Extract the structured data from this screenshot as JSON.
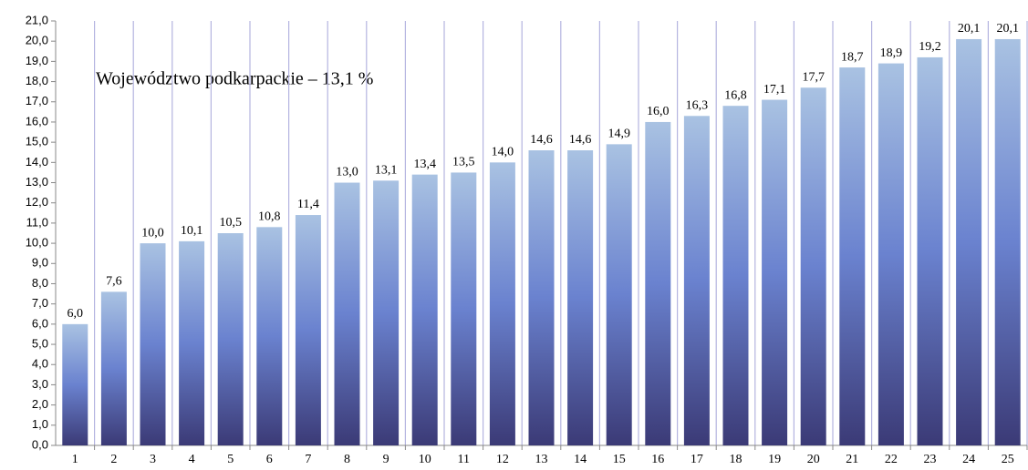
{
  "chart_data": {
    "type": "bar",
    "annotation": "Województwo podkarpackie – 13,1 %",
    "categories": [
      "1",
      "2",
      "3",
      "4",
      "5",
      "6",
      "7",
      "8",
      "9",
      "10",
      "11",
      "12",
      "13",
      "14",
      "15",
      "16",
      "17",
      "18",
      "19",
      "20",
      "21",
      "22",
      "23",
      "24",
      "25"
    ],
    "values": [
      6.0,
      7.6,
      10.0,
      10.1,
      10.5,
      10.8,
      11.4,
      13.0,
      13.1,
      13.4,
      13.5,
      14.0,
      14.6,
      14.6,
      14.9,
      16.0,
      16.3,
      16.8,
      17.1,
      17.7,
      18.7,
      18.9,
      19.2,
      20.1,
      20.1
    ],
    "value_labels": [
      "6,0",
      "7,6",
      "10,0",
      "10,1",
      "10,5",
      "10,8",
      "11,4",
      "13,0",
      "13,1",
      "13,4",
      "13,5",
      "14,0",
      "14,6",
      "14,6",
      "14,9",
      "16,0",
      "16,3",
      "16,8",
      "17,1",
      "17,7",
      "18,7",
      "18,9",
      "19,2",
      "20,1",
      "20,1"
    ],
    "ylim": [
      0,
      21
    ],
    "yticks": [
      {
        "value": 0,
        "label": "0,0"
      },
      {
        "value": 1,
        "label": "1,0"
      },
      {
        "value": 2,
        "label": "2,0"
      },
      {
        "value": 3,
        "label": "3,0"
      },
      {
        "value": 4,
        "label": "4,0"
      },
      {
        "value": 5,
        "label": "5,0"
      },
      {
        "value": 6,
        "label": "6,0"
      },
      {
        "value": 7,
        "label": "7,0"
      },
      {
        "value": 8,
        "label": "8,0"
      },
      {
        "value": 9,
        "label": "9,0"
      },
      {
        "value": 10,
        "label": "10,0"
      },
      {
        "value": 11,
        "label": "11,0"
      },
      {
        "value": 12,
        "label": "12,0"
      },
      {
        "value": 13,
        "label": "13,0"
      },
      {
        "value": 14,
        "label": "14,0"
      },
      {
        "value": 15,
        "label": "15,0"
      },
      {
        "value": 16,
        "label": "16,0"
      },
      {
        "value": 17,
        "label": "17,0"
      },
      {
        "value": 18,
        "label": "18,0"
      },
      {
        "value": 19,
        "label": "19,0"
      },
      {
        "value": 20,
        "label": "20,0"
      },
      {
        "value": 21,
        "label": "21,0"
      }
    ],
    "grid": true
  }
}
